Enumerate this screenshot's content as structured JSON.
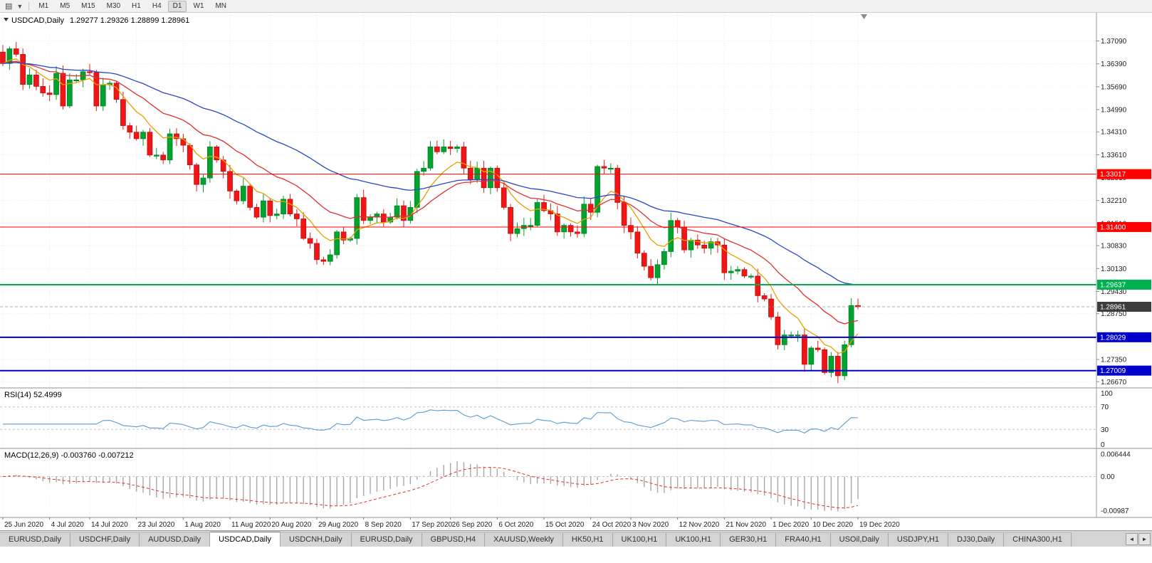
{
  "toolbar": {
    "timeframes": [
      "M1",
      "M5",
      "M15",
      "M30",
      "H1",
      "H4",
      "D1",
      "W1",
      "MN"
    ],
    "active_timeframe": "D1"
  },
  "main_chart": {
    "symbol_period": "USDCAD,Daily",
    "ohlc": "1.29277 1.29326 1.28899 1.28961"
  },
  "price_axis_labels": [
    "1.37090",
    "1.36390",
    "1.35690",
    "1.34990",
    "1.34310",
    "1.33610",
    "1.32910",
    "1.32210",
    "1.31510",
    "1.30830",
    "1.30130",
    "1.29430",
    "1.28750",
    "1.28050",
    "1.27350",
    "1.26670"
  ],
  "hlines": [
    {
      "label": "1.33017",
      "value": 1.33017,
      "color": "#ff0000",
      "width": 1
    },
    {
      "label": "1.31400",
      "value": 1.314,
      "color": "#ff0000",
      "width": 1
    },
    {
      "label": "1.29637",
      "value": 1.29637,
      "color": "#00b050",
      "width": 2
    },
    {
      "label": "1.28029",
      "value": 1.28029,
      "color": "#0000cd",
      "width": 2
    },
    {
      "label": "1.27009",
      "value": 1.27009,
      "color": "#0000cd",
      "width": 2
    }
  ],
  "current_price": {
    "label": "1.28961",
    "value": 1.28961,
    "badge_color": "#3c3c3c"
  },
  "rsi_panel": {
    "title": "RSI(14) 52.4999",
    "axis_labels": [
      "100",
      "70",
      "30",
      "0"
    ],
    "levels": [
      70,
      30
    ],
    "line_color": "#5b9bd5"
  },
  "macd_panel": {
    "title": "MACD(12,26,9) -0.003760 -0.007212",
    "axis_labels": [
      "0.006444",
      "0.00",
      "-0.00987"
    ],
    "hist_color": "#a8a8a8",
    "signal_color": "#e03030"
  },
  "date_axis_labels": [
    "25 Jun 2020",
    "4 Jul 2020",
    "14 Jul 2020",
    "23 Jul 2020",
    "1 Aug 2020",
    "11 Aug 2020",
    "20 Aug 2020",
    "29 Aug 2020",
    "8 Sep 2020",
    "17 Sep 2020",
    "26 Sep 2020",
    "6 Oct 2020",
    "15 Oct 2020",
    "24 Oct 2020",
    "3 Nov 2020",
    "12 Nov 2020",
    "21 Nov 2020",
    "1 Dec 2020",
    "10 Dec 2020",
    "19 Dec 2020"
  ],
  "tabs": {
    "items": [
      {
        "label": "EURUSD,Daily"
      },
      {
        "label": "USDCHF,Daily"
      },
      {
        "label": "AUDUSD,Daily"
      },
      {
        "label": "USDCAD,Daily",
        "active": true
      },
      {
        "label": "USDCNH,Daily"
      },
      {
        "label": "EURUSD,Daily"
      },
      {
        "label": "GBPUSD,H4"
      },
      {
        "label": "XAUUSD,Weekly"
      },
      {
        "label": "HK50,H1"
      },
      {
        "label": "UK100,H1"
      },
      {
        "label": "UK100,H1"
      },
      {
        "label": "GER30,H1"
      },
      {
        "label": "FRA40,H1"
      },
      {
        "label": "USOil,Daily"
      },
      {
        "label": "USDJPY,H1"
      },
      {
        "label": "DJ30,Daily"
      },
      {
        "label": "CHINA300,H1"
      }
    ],
    "scroll_left": "◄",
    "scroll_right": "►"
  },
  "chart_data": {
    "type": "candlestick",
    "symbol": "USDCAD",
    "timeframe": "Daily",
    "price_range": {
      "top": 1.3795,
      "bottom": 1.2648
    },
    "closes": [
      1.364,
      1.3685,
      1.3668,
      1.3576,
      1.3605,
      1.357,
      1.355,
      1.3545,
      1.361,
      1.351,
      1.359,
      1.359,
      1.3615,
      1.3613,
      1.351,
      1.3575,
      1.358,
      1.353,
      1.345,
      1.343,
      1.341,
      1.343,
      1.336,
      1.336,
      1.3345,
      1.3425,
      1.341,
      1.339,
      1.333,
      1.327,
      1.329,
      1.3385,
      1.3345,
      1.331,
      1.325,
      1.322,
      1.3265,
      1.32,
      1.317,
      1.322,
      1.3175,
      1.318,
      1.3225,
      1.318,
      1.3165,
      1.3105,
      1.309,
      1.304,
      1.3035,
      1.3055,
      1.3125,
      1.31,
      1.3105,
      1.323,
      1.316,
      1.317,
      1.318,
      1.3155,
      1.317,
      1.3205,
      1.316,
      1.32,
      1.331,
      1.332,
      1.3385,
      1.337,
      1.3385,
      1.338,
      1.3385,
      1.332,
      1.3285,
      1.332,
      1.326,
      1.332,
      1.326,
      1.32,
      1.312,
      1.3135,
      1.3145,
      1.3145,
      1.3215,
      1.319,
      1.318,
      1.3125,
      1.3145,
      1.3125,
      1.312,
      1.321,
      1.3185,
      1.3325,
      1.332,
      1.332,
      1.3215,
      1.3145,
      1.3125,
      1.306,
      1.302,
      1.2985,
      1.3025,
      1.3065,
      1.316,
      1.314,
      1.307,
      1.31,
      1.3085,
      1.3075,
      1.3095,
      1.3085,
      1.3,
      1.3005,
      1.301,
      1.299,
      1.299,
      1.293,
      1.292,
      1.2865,
      1.278,
      1.281,
      1.281,
      1.281,
      1.272,
      1.277,
      1.2765,
      1.2695,
      1.2745,
      1.2685,
      1.278,
      1.29,
      1.2896
    ],
    "candle_colors": {
      "bull": "#00a32e",
      "bear": "#f21515"
    },
    "moving_averages": [
      {
        "period": 8,
        "color": "#e8a000"
      },
      {
        "period": 20,
        "color": "#e03030"
      },
      {
        "period": 45,
        "color": "#2847c8"
      }
    ],
    "rsi_period": 14,
    "macd_params": [
      12,
      26,
      9
    ]
  }
}
